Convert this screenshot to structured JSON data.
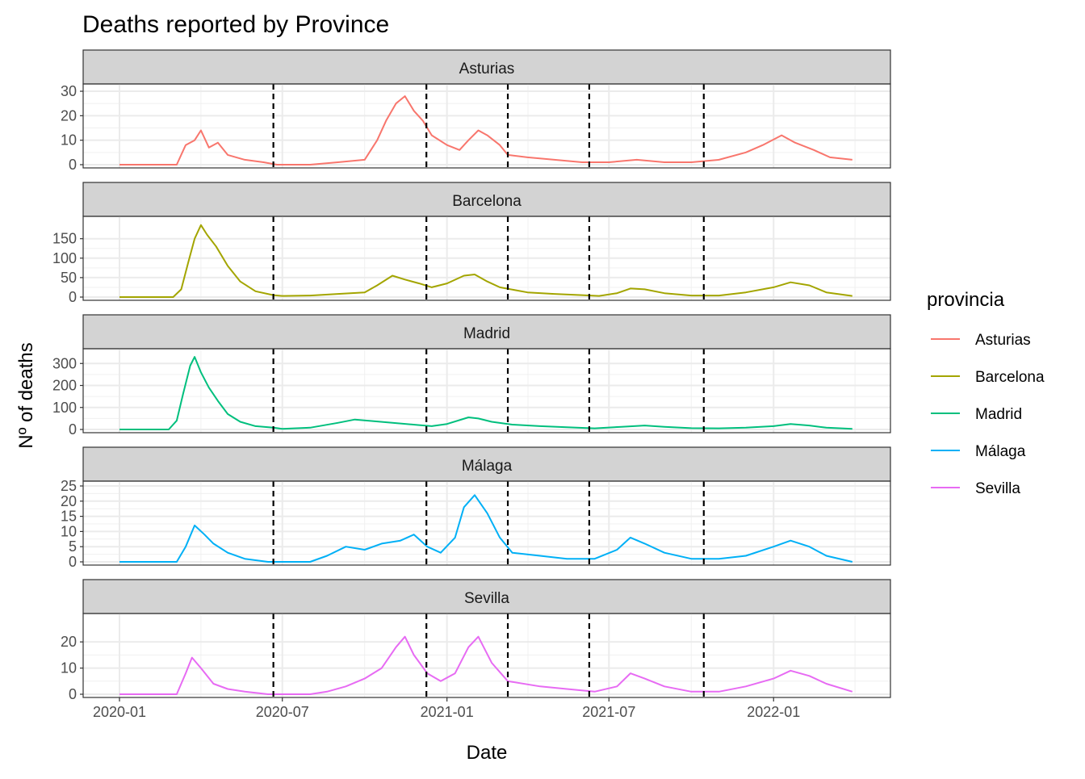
{
  "chart_data": {
    "type": "line",
    "title": "Deaths reported by Province",
    "xlabel": "Date",
    "ylabel": "Nº of deaths",
    "x_range": [
      "2020-01-01",
      "2022-04-01"
    ],
    "x_ticks": [
      "2020-01",
      "2020-07",
      "2021-01",
      "2021-07",
      "2022-01"
    ],
    "x_tick_dates": [
      "2020-01-01",
      "2020-07-01",
      "2021-01-01",
      "2021-07-01",
      "2022-01-01"
    ],
    "vlines": [
      "2020-06-21",
      "2020-12-09",
      "2021-03-10",
      "2021-06-09",
      "2021-10-15"
    ],
    "grid": true,
    "legend": {
      "title": "provincia",
      "position": "right"
    },
    "facets": [
      {
        "name": "Asturias",
        "color": "#F8766D",
        "ylim": [
          0,
          31
        ],
        "yticks": [
          0,
          10,
          20,
          30
        ],
        "points": [
          [
            "2020-01-01",
            0
          ],
          [
            "2020-03-05",
            0
          ],
          [
            "2020-03-15",
            8
          ],
          [
            "2020-03-25",
            10
          ],
          [
            "2020-04-01",
            14
          ],
          [
            "2020-04-10",
            7
          ],
          [
            "2020-04-20",
            9
          ],
          [
            "2020-05-01",
            4
          ],
          [
            "2020-05-20",
            2
          ],
          [
            "2020-06-10",
            1
          ],
          [
            "2020-06-25",
            0
          ],
          [
            "2020-08-01",
            0
          ],
          [
            "2020-09-01",
            1
          ],
          [
            "2020-10-01",
            2
          ],
          [
            "2020-10-15",
            10
          ],
          [
            "2020-10-25",
            18
          ],
          [
            "2020-11-05",
            25
          ],
          [
            "2020-11-15",
            28
          ],
          [
            "2020-11-25",
            22
          ],
          [
            "2020-12-05",
            18
          ],
          [
            "2020-12-15",
            12
          ],
          [
            "2021-01-01",
            8
          ],
          [
            "2021-01-15",
            6
          ],
          [
            "2021-01-25",
            10
          ],
          [
            "2021-02-05",
            14
          ],
          [
            "2021-02-15",
            12
          ],
          [
            "2021-03-01",
            8
          ],
          [
            "2021-03-10",
            4
          ],
          [
            "2021-04-01",
            3
          ],
          [
            "2021-05-01",
            2
          ],
          [
            "2021-06-01",
            1
          ],
          [
            "2021-07-01",
            1
          ],
          [
            "2021-08-01",
            2
          ],
          [
            "2021-09-01",
            1
          ],
          [
            "2021-10-01",
            1
          ],
          [
            "2021-11-01",
            2
          ],
          [
            "2021-12-01",
            5
          ],
          [
            "2021-12-20",
            8
          ],
          [
            "2022-01-10",
            12
          ],
          [
            "2022-01-25",
            9
          ],
          [
            "2022-02-15",
            6
          ],
          [
            "2022-03-05",
            3
          ],
          [
            "2022-03-30",
            2
          ]
        ]
      },
      {
        "name": "Barcelona",
        "color": "#A3A500",
        "ylim": [
          0,
          195
        ],
        "yticks": [
          0,
          50,
          100,
          150
        ],
        "points": [
          [
            "2020-01-01",
            0
          ],
          [
            "2020-03-01",
            0
          ],
          [
            "2020-03-10",
            20
          ],
          [
            "2020-03-18",
            90
          ],
          [
            "2020-03-25",
            150
          ],
          [
            "2020-04-01",
            185
          ],
          [
            "2020-04-08",
            160
          ],
          [
            "2020-04-18",
            130
          ],
          [
            "2020-05-01",
            80
          ],
          [
            "2020-05-15",
            40
          ],
          [
            "2020-06-01",
            15
          ],
          [
            "2020-06-21",
            5
          ],
          [
            "2020-07-01",
            3
          ],
          [
            "2020-08-01",
            4
          ],
          [
            "2020-09-01",
            8
          ],
          [
            "2020-10-01",
            12
          ],
          [
            "2020-10-15",
            30
          ],
          [
            "2020-11-01",
            55
          ],
          [
            "2020-11-15",
            45
          ],
          [
            "2020-12-01",
            35
          ],
          [
            "2020-12-15",
            25
          ],
          [
            "2021-01-01",
            35
          ],
          [
            "2021-01-20",
            55
          ],
          [
            "2021-02-01",
            58
          ],
          [
            "2021-02-15",
            40
          ],
          [
            "2021-03-01",
            25
          ],
          [
            "2021-04-01",
            12
          ],
          [
            "2021-05-01",
            8
          ],
          [
            "2021-06-01",
            5
          ],
          [
            "2021-06-20",
            3
          ],
          [
            "2021-07-10",
            10
          ],
          [
            "2021-07-25",
            22
          ],
          [
            "2021-08-10",
            20
          ],
          [
            "2021-09-01",
            10
          ],
          [
            "2021-10-01",
            4
          ],
          [
            "2021-11-01",
            4
          ],
          [
            "2021-12-01",
            12
          ],
          [
            "2022-01-01",
            25
          ],
          [
            "2022-01-20",
            38
          ],
          [
            "2022-02-10",
            30
          ],
          [
            "2022-03-01",
            12
          ],
          [
            "2022-03-30",
            3
          ]
        ]
      },
      {
        "name": "Madrid",
        "color": "#00BF7D",
        "ylim": [
          0,
          345
        ],
        "yticks": [
          0,
          100,
          200,
          300
        ],
        "points": [
          [
            "2020-01-01",
            0
          ],
          [
            "2020-02-25",
            0
          ],
          [
            "2020-03-05",
            40
          ],
          [
            "2020-03-12",
            160
          ],
          [
            "2020-03-20",
            290
          ],
          [
            "2020-03-25",
            330
          ],
          [
            "2020-04-01",
            260
          ],
          [
            "2020-04-10",
            190
          ],
          [
            "2020-04-20",
            130
          ],
          [
            "2020-05-01",
            70
          ],
          [
            "2020-05-15",
            35
          ],
          [
            "2020-06-01",
            15
          ],
          [
            "2020-06-21",
            8
          ],
          [
            "2020-07-01",
            3
          ],
          [
            "2020-08-01",
            8
          ],
          [
            "2020-09-01",
            30
          ],
          [
            "2020-09-20",
            45
          ],
          [
            "2020-10-10",
            38
          ],
          [
            "2020-11-01",
            30
          ],
          [
            "2020-12-01",
            20
          ],
          [
            "2020-12-15",
            15
          ],
          [
            "2021-01-01",
            25
          ],
          [
            "2021-01-25",
            55
          ],
          [
            "2021-02-05",
            50
          ],
          [
            "2021-02-20",
            35
          ],
          [
            "2021-03-15",
            22
          ],
          [
            "2021-04-15",
            15
          ],
          [
            "2021-05-15",
            10
          ],
          [
            "2021-06-15",
            5
          ],
          [
            "2021-07-15",
            12
          ],
          [
            "2021-08-10",
            18
          ],
          [
            "2021-09-01",
            12
          ],
          [
            "2021-10-01",
            6
          ],
          [
            "2021-11-01",
            5
          ],
          [
            "2021-12-01",
            8
          ],
          [
            "2022-01-01",
            15
          ],
          [
            "2022-01-20",
            25
          ],
          [
            "2022-02-10",
            18
          ],
          [
            "2022-03-01",
            8
          ],
          [
            "2022-03-30",
            3
          ]
        ]
      },
      {
        "name": "Málaga",
        "color": "#00B0F6",
        "ylim": [
          0,
          25
        ],
        "yticks": [
          0,
          5,
          10,
          15,
          20,
          25
        ],
        "points": [
          [
            "2020-01-01",
            0
          ],
          [
            "2020-03-05",
            0
          ],
          [
            "2020-03-15",
            5
          ],
          [
            "2020-03-25",
            12
          ],
          [
            "2020-04-05",
            9
          ],
          [
            "2020-04-15",
            6
          ],
          [
            "2020-05-01",
            3
          ],
          [
            "2020-05-20",
            1
          ],
          [
            "2020-06-15",
            0
          ],
          [
            "2020-08-01",
            0
          ],
          [
            "2020-08-20",
            2
          ],
          [
            "2020-09-10",
            5
          ],
          [
            "2020-10-01",
            4
          ],
          [
            "2020-10-20",
            6
          ],
          [
            "2020-11-10",
            7
          ],
          [
            "2020-11-25",
            9
          ],
          [
            "2020-12-10",
            5
          ],
          [
            "2020-12-25",
            3
          ],
          [
            "2021-01-10",
            8
          ],
          [
            "2021-01-20",
            18
          ],
          [
            "2021-02-01",
            22
          ],
          [
            "2021-02-15",
            16
          ],
          [
            "2021-03-01",
            8
          ],
          [
            "2021-03-15",
            3
          ],
          [
            "2021-04-15",
            2
          ],
          [
            "2021-05-15",
            1
          ],
          [
            "2021-06-15",
            1
          ],
          [
            "2021-07-10",
            4
          ],
          [
            "2021-07-25",
            8
          ],
          [
            "2021-08-10",
            6
          ],
          [
            "2021-09-01",
            3
          ],
          [
            "2021-10-01",
            1
          ],
          [
            "2021-11-01",
            1
          ],
          [
            "2021-12-01",
            2
          ],
          [
            "2022-01-01",
            5
          ],
          [
            "2022-01-20",
            7
          ],
          [
            "2022-02-10",
            5
          ],
          [
            "2022-03-01",
            2
          ],
          [
            "2022-03-30",
            0
          ]
        ]
      },
      {
        "name": "Sevilla",
        "color": "#E76BF3",
        "ylim": [
          0,
          29
        ],
        "yticks": [
          0,
          10,
          20
        ],
        "points": [
          [
            "2020-01-01",
            0
          ],
          [
            "2020-03-05",
            0
          ],
          [
            "2020-03-15",
            8
          ],
          [
            "2020-03-22",
            14
          ],
          [
            "2020-04-01",
            10
          ],
          [
            "2020-04-15",
            4
          ],
          [
            "2020-05-01",
            2
          ],
          [
            "2020-05-20",
            1
          ],
          [
            "2020-06-15",
            0
          ],
          [
            "2020-08-01",
            0
          ],
          [
            "2020-08-20",
            1
          ],
          [
            "2020-09-10",
            3
          ],
          [
            "2020-10-01",
            6
          ],
          [
            "2020-10-20",
            10
          ],
          [
            "2020-11-05",
            18
          ],
          [
            "2020-11-15",
            22
          ],
          [
            "2020-11-25",
            15
          ],
          [
            "2020-12-10",
            8
          ],
          [
            "2020-12-25",
            5
          ],
          [
            "2021-01-10",
            8
          ],
          [
            "2021-01-25",
            18
          ],
          [
            "2021-02-05",
            22
          ],
          [
            "2021-02-20",
            12
          ],
          [
            "2021-03-10",
            5
          ],
          [
            "2021-04-15",
            3
          ],
          [
            "2021-05-15",
            2
          ],
          [
            "2021-06-15",
            1
          ],
          [
            "2021-07-10",
            3
          ],
          [
            "2021-07-25",
            8
          ],
          [
            "2021-08-10",
            6
          ],
          [
            "2021-09-01",
            3
          ],
          [
            "2021-10-01",
            1
          ],
          [
            "2021-11-01",
            1
          ],
          [
            "2021-12-01",
            3
          ],
          [
            "2022-01-01",
            6
          ],
          [
            "2022-01-20",
            9
          ],
          [
            "2022-02-10",
            7
          ],
          [
            "2022-03-01",
            4
          ],
          [
            "2022-03-30",
            1
          ]
        ]
      }
    ]
  }
}
